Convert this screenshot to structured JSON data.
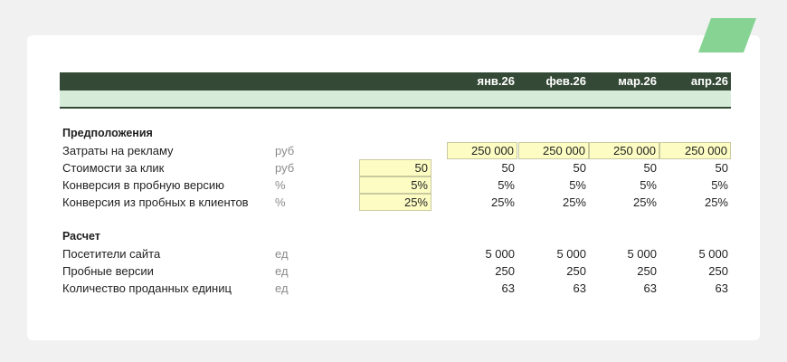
{
  "months": [
    "янв.26",
    "фев.26",
    "мар.26",
    "апр.26"
  ],
  "assumptions": {
    "title": "Предположения",
    "rows": [
      {
        "label": "Затраты на рекламу",
        "unit": "руб",
        "input": "",
        "values": [
          "250 000",
          "250 000",
          "250 000",
          "250 000"
        ]
      },
      {
        "label": "Стоимости за клик",
        "unit": "руб",
        "input": "50",
        "values": [
          "50",
          "50",
          "50",
          "50"
        ]
      },
      {
        "label": "Конверсия в пробную версию",
        "unit": "%",
        "input": "5%",
        "values": [
          "5%",
          "5%",
          "5%",
          "5%"
        ]
      },
      {
        "label": "Конверсия из пробных в клиентов",
        "unit": "%",
        "input": "25%",
        "values": [
          "25%",
          "25%",
          "25%",
          "25%"
        ]
      }
    ]
  },
  "calculation": {
    "title": "Расчет",
    "rows": [
      {
        "label": "Посетители сайта",
        "unit": "ед",
        "values": [
          "5 000",
          "5 000",
          "5 000",
          "5 000"
        ]
      },
      {
        "label": "Пробные версии",
        "unit": "ед",
        "values": [
          "250",
          "250",
          "250",
          "250"
        ]
      },
      {
        "label": "Количество проданных единиц",
        "unit": "ед",
        "values": [
          "63",
          "63",
          "63",
          "63"
        ]
      }
    ]
  },
  "colors": {
    "header_dark": "#344a36",
    "header_light": "#d6ecd9",
    "input_fill": "#fdfdc3",
    "logo_accent": "#7fcf8a"
  },
  "icons": {
    "logo": "green-stripe-logo"
  }
}
